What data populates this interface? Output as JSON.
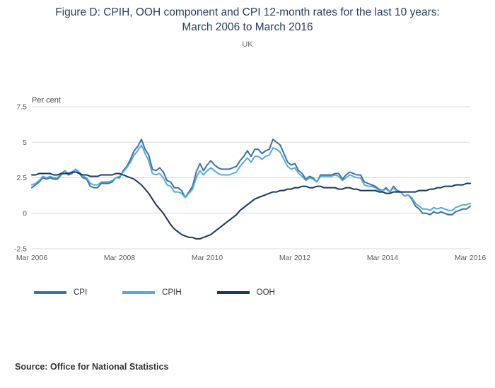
{
  "source": {
    "label": "Source: Office for National Statistics"
  },
  "chart_data": {
    "type": "line",
    "title": "Figure D: CPIH, OOH component and CPI 12-month rates for the last 10 years: March 2006 to March 2016",
    "subtitle": "UK",
    "ylabel": "Per cent",
    "xlabel": "",
    "grid": "horizontal",
    "legend_position": "bottom",
    "ylim": [
      -2.5,
      7.5
    ],
    "y_ticks": [
      7.5,
      5,
      2.5,
      0,
      -2.5
    ],
    "y_tick_labels": [
      "7.5",
      "5",
      "2.5",
      "0",
      "-2.5"
    ],
    "x_tick_labels": [
      "Mar 2006",
      "Mar 2008",
      "Mar 2010",
      "Mar 2012",
      "Mar 2014",
      "Mar 2016"
    ],
    "x_tick_indices": [
      0,
      24,
      48,
      72,
      96,
      120
    ],
    "x_frequency": "monthly",
    "x_range": "Mar 2006 to Mar 2016",
    "colors": {
      "grid": "#d9d9d9",
      "tick_text": "#58595b",
      "axis_title_text": "#444444"
    },
    "series": [
      {
        "name": "CPI",
        "color": "#3a71a5",
        "values": [
          1.8,
          2.0,
          2.2,
          2.5,
          2.4,
          2.5,
          2.4,
          2.4,
          2.7,
          3.0,
          2.7,
          2.8,
          3.1,
          2.8,
          2.5,
          2.4,
          1.9,
          1.8,
          1.8,
          2.1,
          2.1,
          2.1,
          2.2,
          2.5,
          2.5,
          3.0,
          3.3,
          3.8,
          4.4,
          4.7,
          5.2,
          4.5,
          4.1,
          3.1,
          3.0,
          3.2,
          2.9,
          2.3,
          2.2,
          1.8,
          1.8,
          1.6,
          1.1,
          1.5,
          1.9,
          2.9,
          3.5,
          3.0,
          3.4,
          3.7,
          3.4,
          3.2,
          3.1,
          3.1,
          3.1,
          3.2,
          3.3,
          3.7,
          4.0,
          4.4,
          4.0,
          4.5,
          4.5,
          4.2,
          4.4,
          4.5,
          5.2,
          5.0,
          4.8,
          4.2,
          3.6,
          3.4,
          3.5,
          3.0,
          2.8,
          2.4,
          2.6,
          2.5,
          2.2,
          2.7,
          2.7,
          2.7,
          2.7,
          2.8,
          2.8,
          2.4,
          2.7,
          2.9,
          2.8,
          2.7,
          2.7,
          2.2,
          2.1,
          2.0,
          1.9,
          1.7,
          1.6,
          1.8,
          1.5,
          1.9,
          1.6,
          1.5,
          1.2,
          1.3,
          1.0,
          0.5,
          0.3,
          0.0,
          0.0,
          -0.1,
          0.1,
          0.0,
          0.1,
          0.0,
          -0.1,
          -0.1,
          0.1,
          0.2,
          0.3,
          0.3,
          0.5
        ]
      },
      {
        "name": "CPIH",
        "color": "#55aadc",
        "values": [
          2.0,
          2.1,
          2.3,
          2.6,
          2.5,
          2.6,
          2.5,
          2.5,
          2.8,
          3.0,
          2.8,
          2.9,
          3.1,
          2.9,
          2.6,
          2.5,
          2.1,
          2.0,
          2.0,
          2.2,
          2.2,
          2.2,
          2.3,
          2.5,
          2.6,
          2.9,
          3.2,
          3.6,
          4.1,
          4.4,
          4.8,
          4.2,
          3.7,
          2.8,
          2.7,
          2.8,
          2.5,
          2.0,
          1.9,
          1.5,
          1.5,
          1.4,
          1.1,
          1.4,
          1.7,
          2.5,
          3.0,
          2.7,
          3.0,
          3.2,
          3.0,
          2.8,
          2.7,
          2.7,
          2.7,
          2.8,
          2.9,
          3.3,
          3.6,
          3.9,
          3.6,
          4.0,
          4.0,
          3.8,
          4.0,
          4.1,
          4.6,
          4.5,
          4.3,
          3.8,
          3.3,
          3.1,
          3.2,
          2.8,
          2.6,
          2.3,
          2.5,
          2.4,
          2.2,
          2.6,
          2.6,
          2.6,
          2.6,
          2.7,
          2.6,
          2.3,
          2.5,
          2.7,
          2.6,
          2.5,
          2.5,
          2.0,
          1.9,
          1.9,
          1.8,
          1.6,
          1.6,
          1.7,
          1.5,
          1.8,
          1.5,
          1.5,
          1.2,
          1.3,
          1.1,
          0.7,
          0.5,
          0.3,
          0.3,
          0.2,
          0.4,
          0.3,
          0.4,
          0.3,
          0.2,
          0.2,
          0.4,
          0.5,
          0.6,
          0.6,
          0.7
        ]
      },
      {
        "name": "OOH",
        "color": "#17375e",
        "values": [
          2.7,
          2.7,
          2.8,
          2.8,
          2.8,
          2.8,
          2.7,
          2.7,
          2.8,
          2.8,
          2.8,
          2.9,
          2.9,
          2.8,
          2.7,
          2.7,
          2.6,
          2.6,
          2.6,
          2.7,
          2.7,
          2.7,
          2.7,
          2.8,
          2.8,
          2.7,
          2.6,
          2.5,
          2.4,
          2.2,
          2.0,
          1.7,
          1.4,
          1.0,
          0.6,
          0.3,
          0.0,
          -0.4,
          -0.8,
          -1.1,
          -1.3,
          -1.5,
          -1.6,
          -1.7,
          -1.7,
          -1.8,
          -1.8,
          -1.7,
          -1.6,
          -1.5,
          -1.3,
          -1.1,
          -0.9,
          -0.7,
          -0.5,
          -0.3,
          -0.1,
          0.2,
          0.4,
          0.6,
          0.8,
          1.0,
          1.1,
          1.2,
          1.3,
          1.4,
          1.5,
          1.5,
          1.6,
          1.6,
          1.7,
          1.7,
          1.8,
          1.8,
          1.9,
          1.9,
          1.8,
          1.8,
          1.9,
          1.9,
          1.8,
          1.8,
          1.8,
          1.8,
          1.7,
          1.7,
          1.8,
          1.8,
          1.7,
          1.7,
          1.6,
          1.6,
          1.6,
          1.6,
          1.6,
          1.5,
          1.5,
          1.4,
          1.4,
          1.5,
          1.5,
          1.5,
          1.5,
          1.5,
          1.5,
          1.5,
          1.6,
          1.6,
          1.6,
          1.7,
          1.7,
          1.8,
          1.8,
          1.9,
          1.9,
          1.9,
          2.0,
          2.0,
          2.0,
          2.1,
          2.1
        ]
      }
    ]
  }
}
